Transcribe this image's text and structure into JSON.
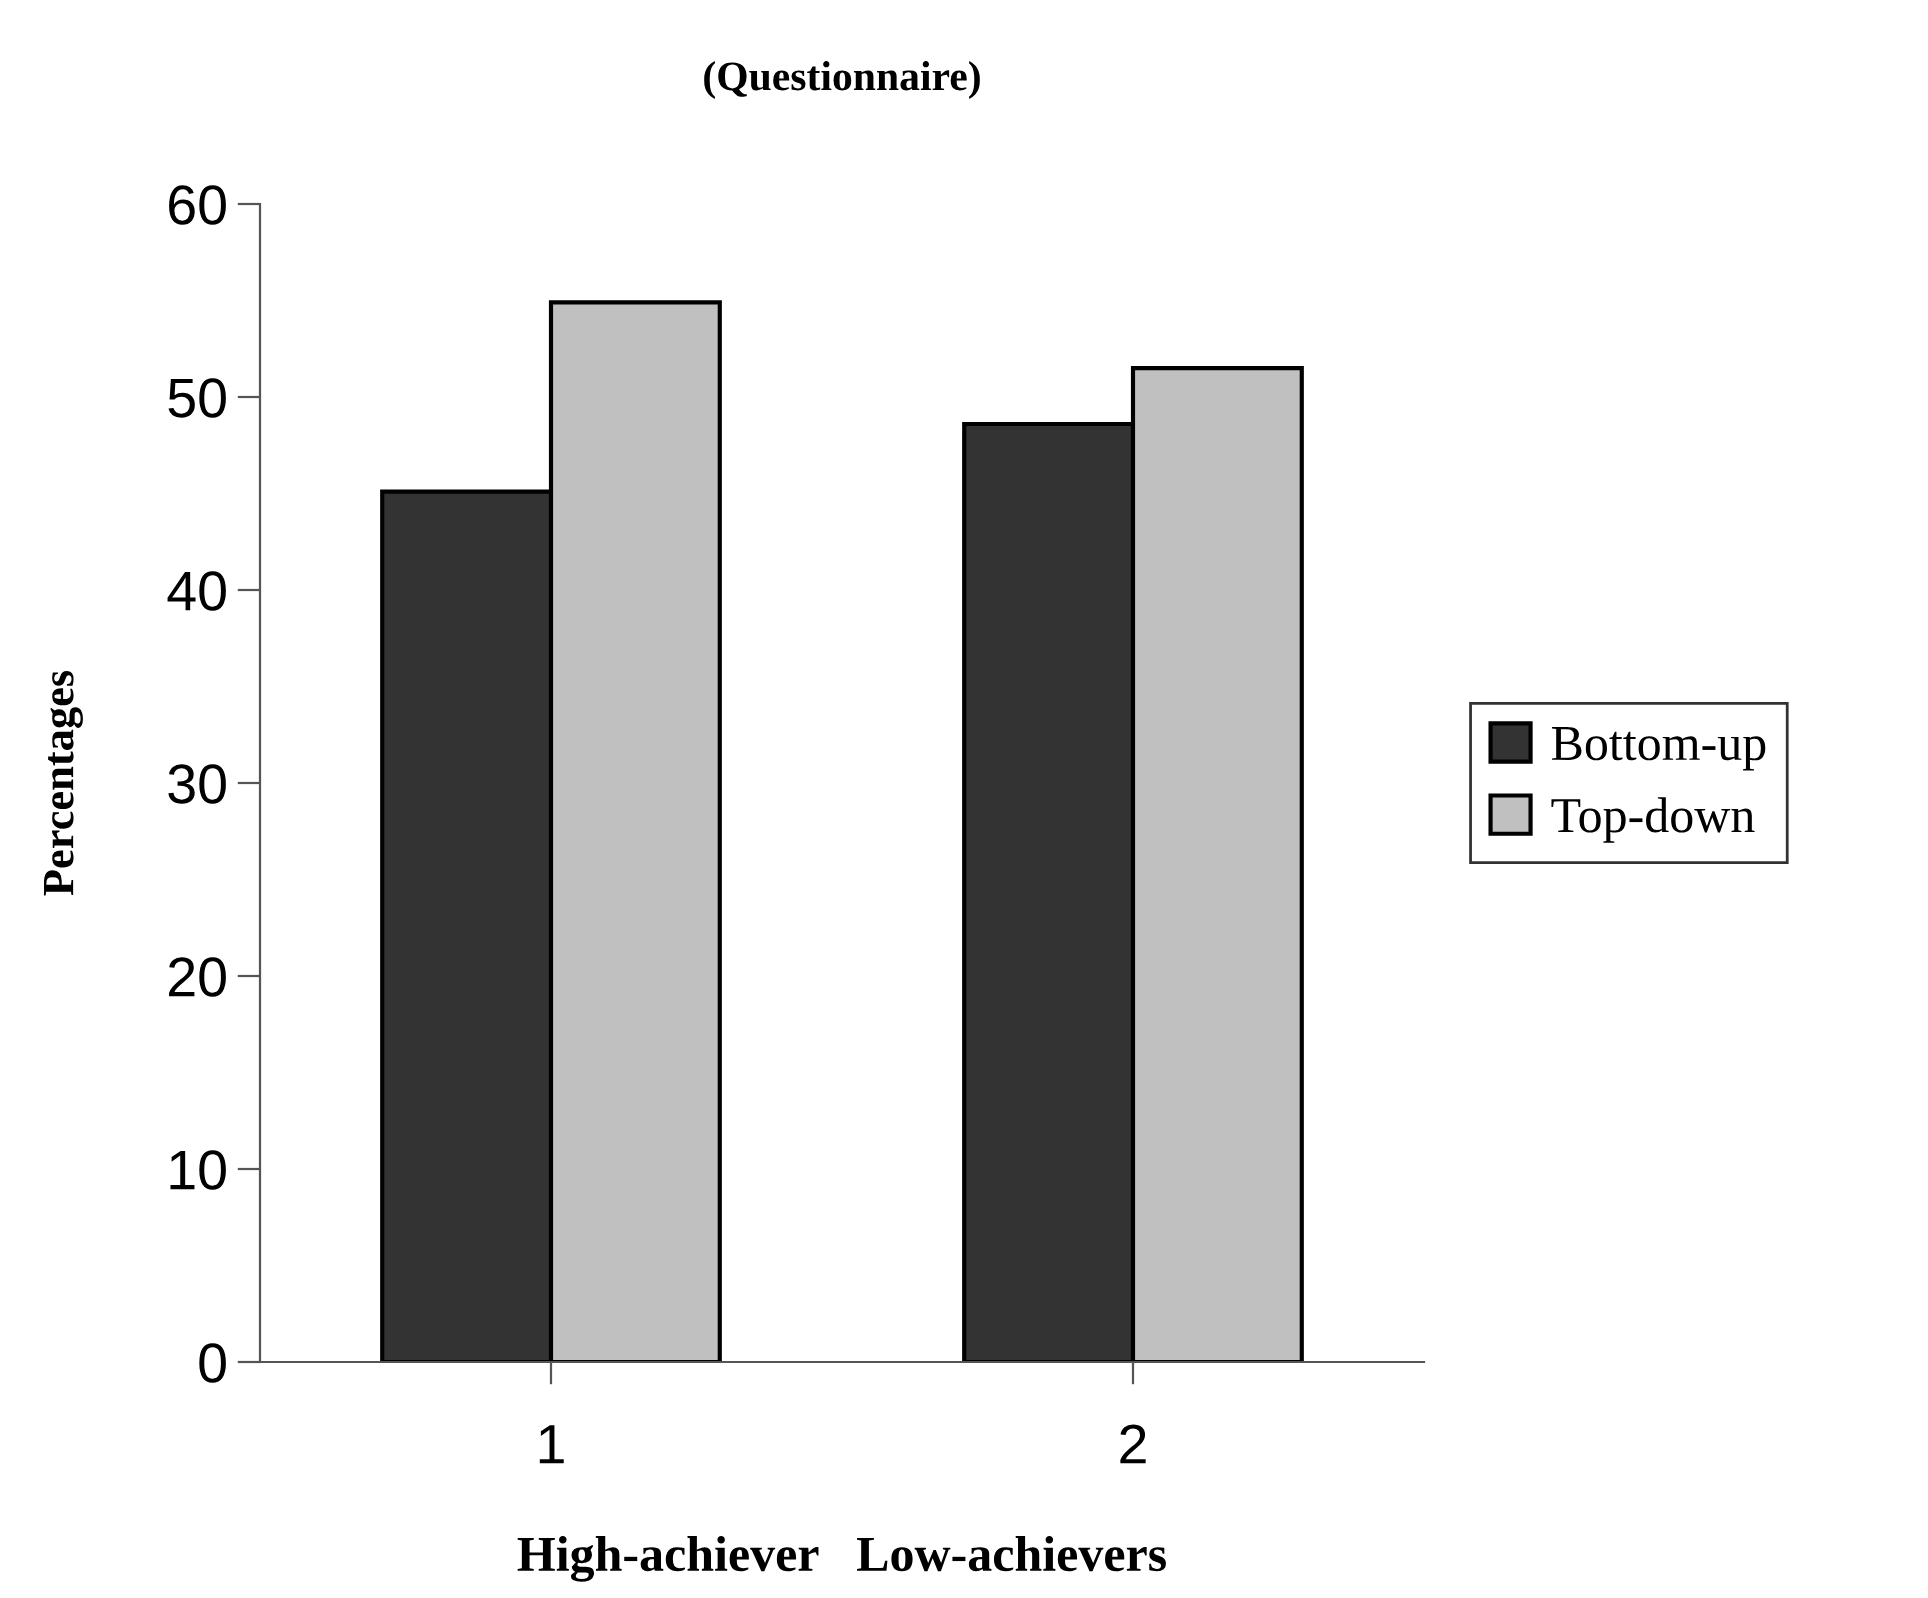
{
  "chart_data": {
    "type": "bar",
    "title": "(Questionnaire)",
    "xlabel": "High-achiever   Low-achievers",
    "ylabel": "Percentages",
    "categories": [
      "1",
      "2"
    ],
    "series": [
      {
        "name": "Bottom-up",
        "color": "#333333",
        "values": [
          45.1,
          48.6
        ]
      },
      {
        "name": "Top-down",
        "color": "#c0c0c0",
        "values": [
          54.9,
          51.5
        ]
      }
    ],
    "ylim": [
      0,
      60
    ],
    "yticks": [
      0,
      10,
      20,
      30,
      40,
      50,
      60
    ],
    "grid": false,
    "legend": "right"
  }
}
